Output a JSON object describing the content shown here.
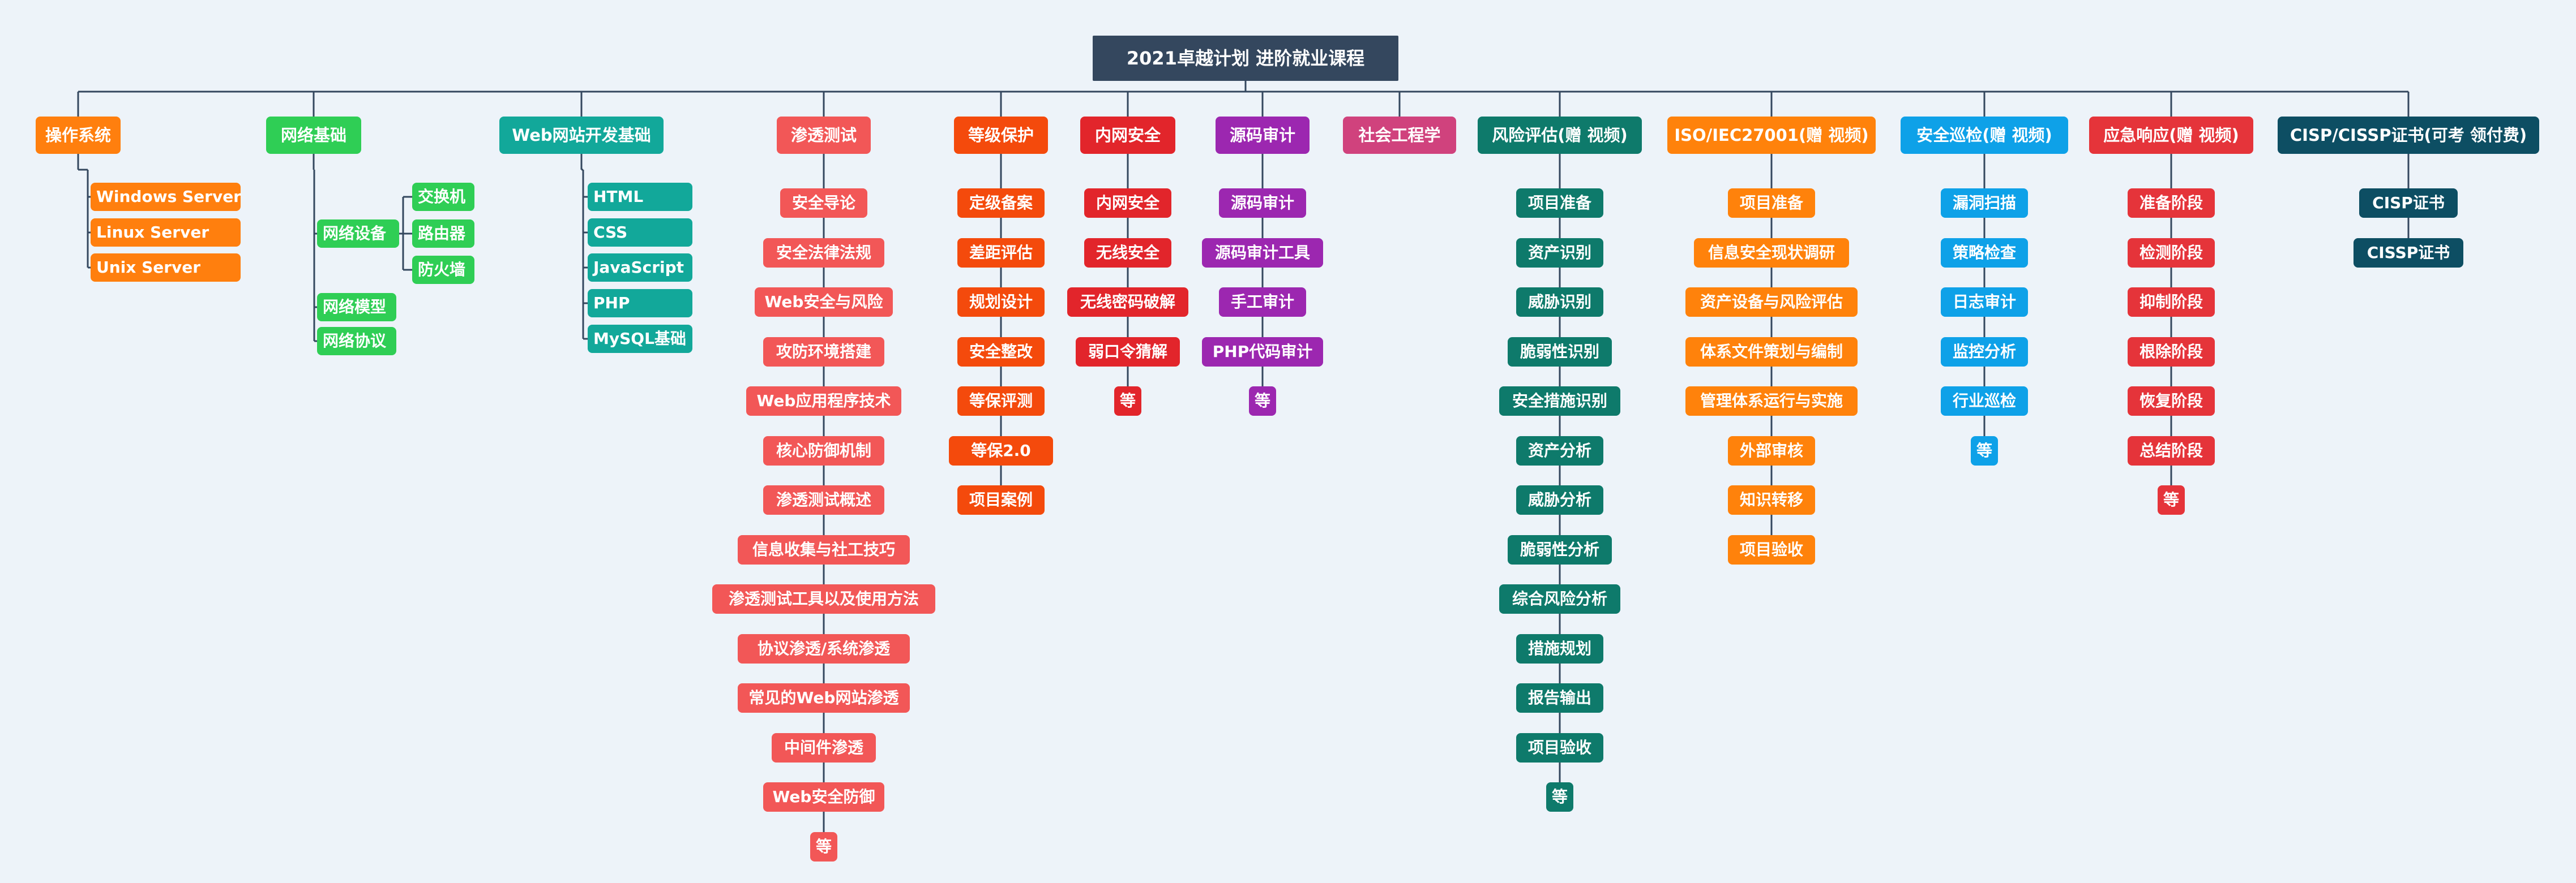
{
  "root": "2021卓越计划 进阶就业课程",
  "branches": [
    {
      "id": "os",
      "title": "操作系统",
      "color": "#ff7f0e",
      "children": [
        {
          "label": "Windows Server"
        },
        {
          "label": "Linux Server"
        },
        {
          "label": "Unix Server"
        }
      ]
    },
    {
      "id": "net",
      "title": "网络基础",
      "color": "#2fce55",
      "children": [
        {
          "label": "网络设备",
          "children": [
            {
              "label": "交换机"
            },
            {
              "label": "路由器"
            },
            {
              "label": "防火墙"
            }
          ]
        },
        {
          "label": "网络模型"
        },
        {
          "label": "网络协议"
        }
      ]
    },
    {
      "id": "web",
      "title": "Web网站开发基础",
      "color": "#12a89a",
      "children": [
        {
          "label": "HTML"
        },
        {
          "label": "CSS"
        },
        {
          "label": "JavaScript"
        },
        {
          "label": "PHP"
        },
        {
          "label": "MySQL基础"
        }
      ]
    },
    {
      "id": "pentest",
      "title": "渗透测试",
      "color": "#f25757",
      "children": [
        {
          "label": "安全导论"
        },
        {
          "label": "安全法律法规"
        },
        {
          "label": "Web安全与风险"
        },
        {
          "label": "攻防环境搭建"
        },
        {
          "label": "Web应用程序技术"
        },
        {
          "label": "核心防御机制"
        },
        {
          "label": "渗透测试概述"
        },
        {
          "label": "信息收集与社工技巧"
        },
        {
          "label": "渗透测试工具以及使用方法"
        },
        {
          "label": "协议渗透/系统渗透"
        },
        {
          "label": "常见的Web网站渗透"
        },
        {
          "label": "中间件渗透"
        },
        {
          "label": "Web安全防御"
        },
        {
          "label": "等"
        }
      ]
    },
    {
      "id": "level",
      "title": "等级保护",
      "color": "#f44a0c",
      "children": [
        {
          "label": "定级备案"
        },
        {
          "label": "差距评估"
        },
        {
          "label": "规划设计"
        },
        {
          "label": "安全整改"
        },
        {
          "label": "等保评测"
        },
        {
          "label": "等保2.0"
        },
        {
          "label": "项目案例"
        }
      ]
    },
    {
      "id": "intranet",
      "title": "内网安全",
      "color": "#e2252b",
      "children": [
        {
          "label": "内网安全"
        },
        {
          "label": "无线安全"
        },
        {
          "label": "无线密码破解"
        },
        {
          "label": "弱口令猜解"
        },
        {
          "label": "等"
        }
      ]
    },
    {
      "id": "audit",
      "title": "源码审计",
      "color": "#9c27b0",
      "children": [
        {
          "label": "源码审计"
        },
        {
          "label": "源码审计工具"
        },
        {
          "label": "手工审计"
        },
        {
          "label": "PHP代码审计"
        },
        {
          "label": "等"
        }
      ]
    },
    {
      "id": "social",
      "title": "社会工程学",
      "color": "#d0427d",
      "children": []
    },
    {
      "id": "risk",
      "title": "风险评估(赠 视频)",
      "color": "#0e7a6b",
      "children": [
        {
          "label": "项目准备"
        },
        {
          "label": "资产识别"
        },
        {
          "label": "威胁识别"
        },
        {
          "label": "脆弱性识别"
        },
        {
          "label": "安全措施识别"
        },
        {
          "label": "资产分析"
        },
        {
          "label": "威胁分析"
        },
        {
          "label": "脆弱性分析"
        },
        {
          "label": "综合风险分析"
        },
        {
          "label": "措施规划"
        },
        {
          "label": "报告输出"
        },
        {
          "label": "项目验收"
        },
        {
          "label": "等"
        }
      ]
    },
    {
      "id": "iso",
      "title": "ISO/IEC27001(赠 视频)",
      "color": "#ff820b",
      "children": [
        {
          "label": "项目准备"
        },
        {
          "label": "信息安全现状调研"
        },
        {
          "label": "资产设备与风险评估"
        },
        {
          "label": "体系文件策划与编制"
        },
        {
          "label": "管理体系运行与实施"
        },
        {
          "label": "外部审核"
        },
        {
          "label": "知识转移"
        },
        {
          "label": "项目验收"
        }
      ]
    },
    {
      "id": "patrol",
      "title": "安全巡检(赠 视频)",
      "color": "#0ea1e8",
      "children": [
        {
          "label": "漏洞扫描"
        },
        {
          "label": "策略检查"
        },
        {
          "label": "日志审计"
        },
        {
          "label": "监控分析"
        },
        {
          "label": "行业巡检"
        },
        {
          "label": "等"
        }
      ]
    },
    {
      "id": "emergency",
      "title": "应急响应(赠 视频)",
      "color": "#e5343a",
      "children": [
        {
          "label": "准备阶段"
        },
        {
          "label": "检测阶段"
        },
        {
          "label": "抑制阶段"
        },
        {
          "label": "根除阶段"
        },
        {
          "label": "恢复阶段"
        },
        {
          "label": "总结阶段"
        },
        {
          "label": "等"
        }
      ]
    },
    {
      "id": "cisp",
      "title": "CISP/CISSP证书(可考 领付费)",
      "color": "#0d4e63",
      "children": [
        {
          "label": "CISP证书"
        },
        {
          "label": "CISSP证书"
        }
      ]
    }
  ]
}
